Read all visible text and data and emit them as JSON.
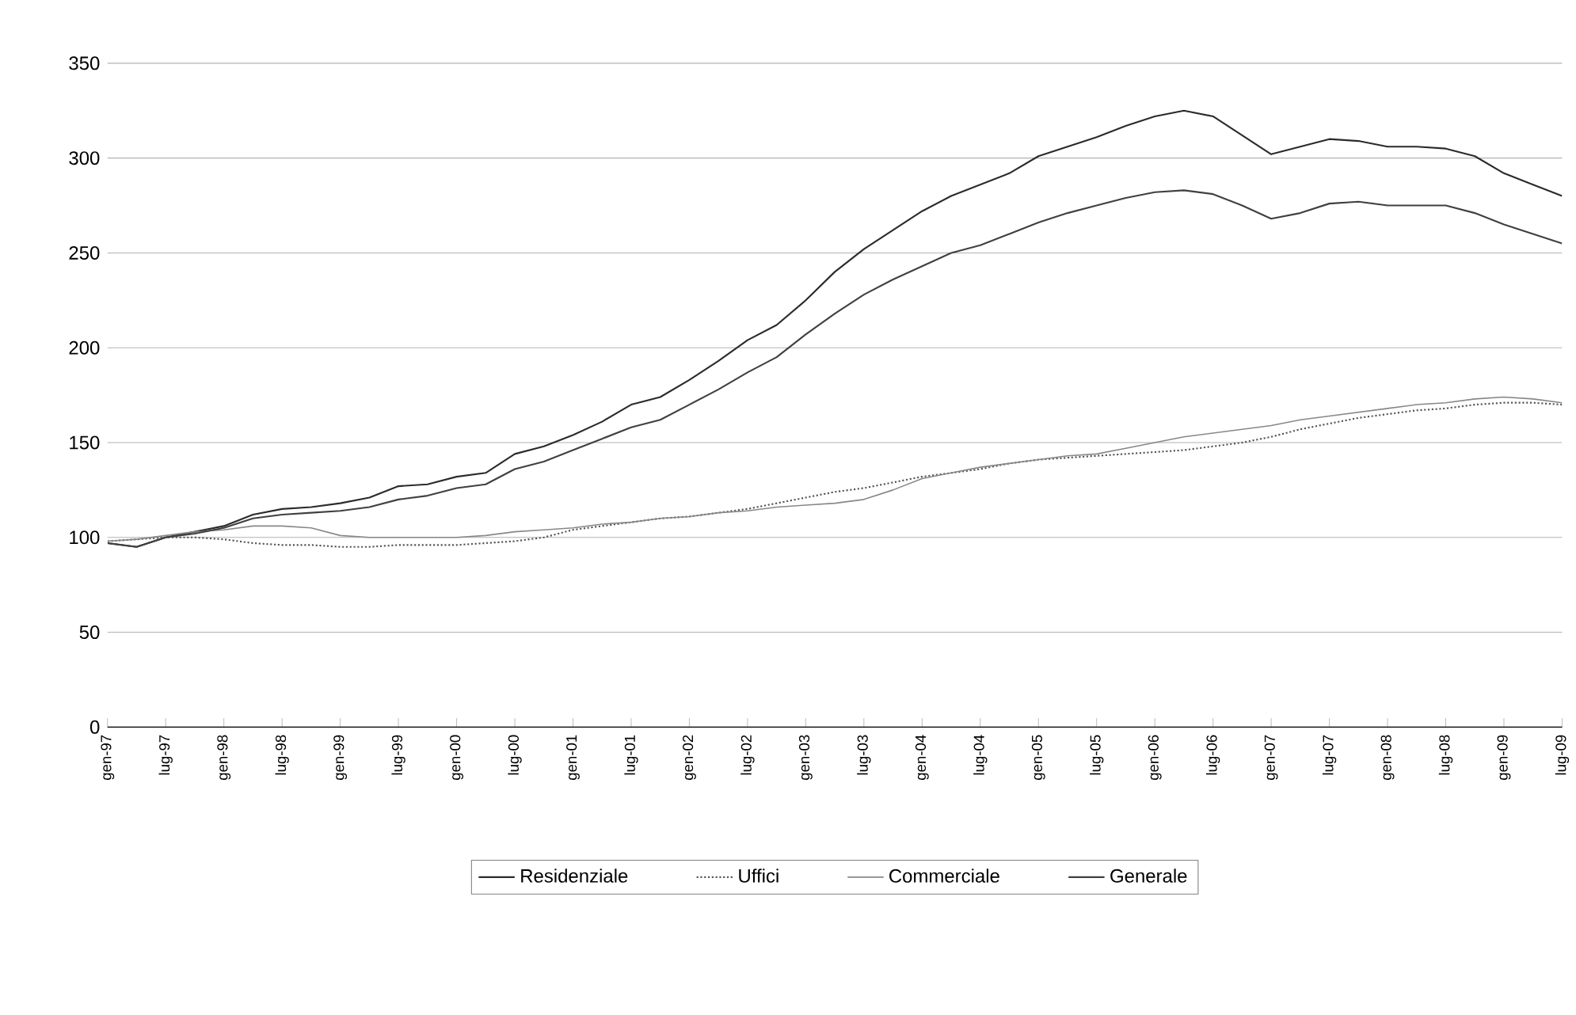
{
  "chart_data": {
    "type": "line",
    "categories": [
      "gen-97",
      null,
      "lug-97",
      null,
      "gen-98",
      null,
      "lug-98",
      null,
      "gen-99",
      null,
      "lug-99",
      null,
      "gen-00",
      null,
      "lug-00",
      null,
      "gen-01",
      null,
      "lug-01",
      null,
      "gen-02",
      null,
      "lug-02",
      null,
      "gen-03",
      null,
      "lug-03",
      null,
      "gen-04",
      null,
      "lug-04",
      null,
      "gen-05",
      null,
      "lug-05",
      null,
      "gen-06",
      null,
      "lug-06",
      null,
      "gen-07",
      null,
      "lug-07",
      null,
      "gen-08",
      null,
      "lug-08",
      null,
      "gen-09",
      null,
      "lug-09"
    ],
    "series": [
      {
        "name": "Residenziale",
        "color": "#2b2b2b",
        "line_style": "solid",
        "values": [
          97,
          95,
          100,
          103,
          106,
          112,
          115,
          116,
          118,
          121,
          127,
          128,
          132,
          134,
          144,
          148,
          154,
          161,
          170,
          174,
          183,
          193,
          204,
          212,
          225,
          240,
          252,
          262,
          272,
          280,
          286,
          292,
          301,
          306,
          311,
          317,
          322,
          325,
          322,
          312,
          302,
          306,
          310,
          309,
          306,
          306,
          305,
          301,
          292,
          286,
          280
        ]
      },
      {
        "name": "Uffici",
        "color": "#555555",
        "line_style": "dotted",
        "values": [
          98,
          99,
          100,
          100,
          99,
          97,
          96,
          96,
          95,
          95,
          96,
          96,
          96,
          97,
          98,
          100,
          104,
          106,
          108,
          110,
          111,
          113,
          115,
          118,
          121,
          124,
          126,
          129,
          132,
          134,
          136,
          139,
          141,
          142,
          143,
          144,
          145,
          146,
          148,
          150,
          153,
          157,
          160,
          163,
          165,
          167,
          168,
          170,
          171,
          171,
          170
        ]
      },
      {
        "name": "Commerciale",
        "color": "#888888",
        "line_style": "solid",
        "values": [
          98,
          99,
          101,
          103,
          104,
          106,
          106,
          105,
          101,
          100,
          100,
          100,
          100,
          101,
          103,
          104,
          105,
          107,
          108,
          110,
          111,
          113,
          114,
          116,
          117,
          118,
          120,
          125,
          131,
          134,
          137,
          139,
          141,
          143,
          144,
          147,
          150,
          153,
          155,
          157,
          159,
          162,
          164,
          166,
          168,
          170,
          171,
          173,
          174,
          173,
          171
        ]
      },
      {
        "name": "Generale",
        "color": "#404040",
        "line_style": "solid",
        "values": [
          97,
          95,
          100,
          102,
          105,
          110,
          112,
          113,
          114,
          116,
          120,
          122,
          126,
          128,
          136,
          140,
          146,
          152,
          158,
          162,
          170,
          178,
          187,
          195,
          207,
          218,
          228,
          236,
          243,
          250,
          254,
          260,
          266,
          271,
          275,
          279,
          282,
          283,
          281,
          275,
          268,
          271,
          276,
          277,
          275,
          275,
          275,
          271,
          265,
          260,
          255
        ]
      }
    ],
    "ylim": [
      0,
      350
    ],
    "yticks": [
      0,
      50,
      100,
      150,
      200,
      250,
      300,
      350
    ],
    "grid": "y",
    "legend": "bottom",
    "marker": "none"
  }
}
